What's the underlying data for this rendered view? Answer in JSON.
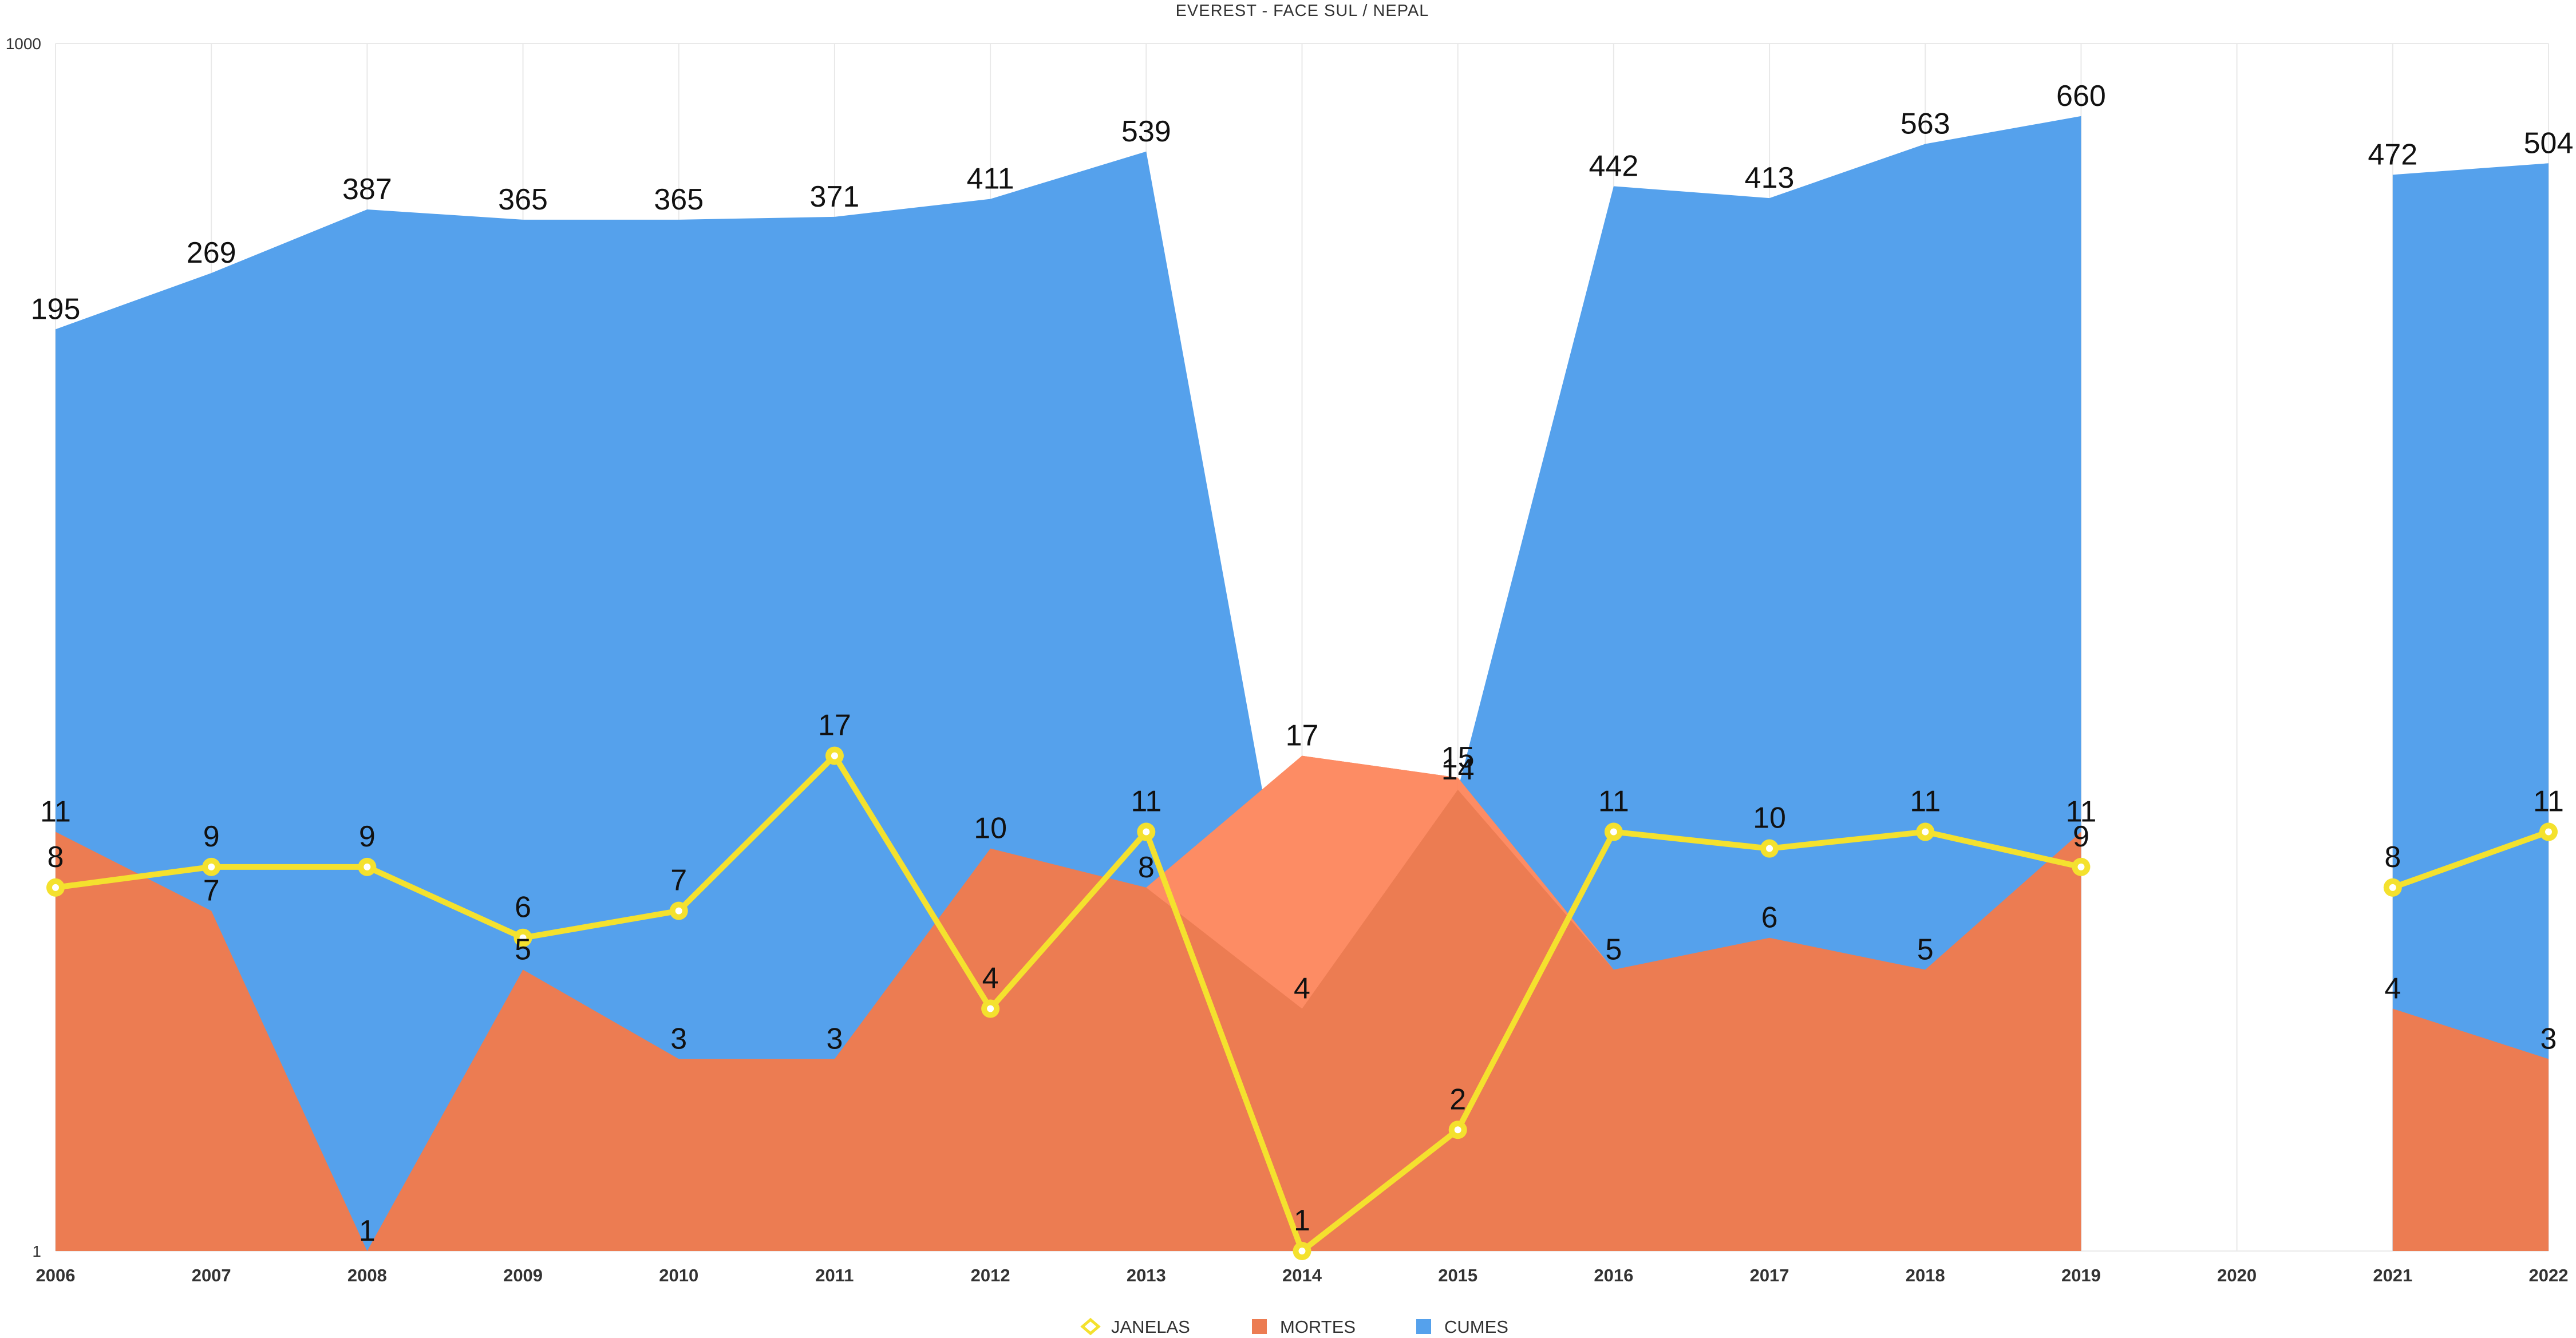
{
  "chart_data": {
    "type": "area",
    "title": "EVEREST - FACE SUL / NEPAL",
    "y_scale": "log",
    "ylim": [
      1,
      1000
    ],
    "yticks": [
      "1",
      "1000"
    ],
    "grid": true,
    "legend_position": "bottom",
    "x": [
      "2006",
      "2007",
      "2008",
      "2009",
      "2010",
      "2011",
      "2012",
      "2013",
      "2014",
      "2015",
      "2016",
      "2017",
      "2018",
      "2019",
      "2020",
      "2021",
      "2022"
    ],
    "series": [
      {
        "name": "JANELAS",
        "kind": "line",
        "color": "#f4e12e",
        "values": [
          8,
          9,
          9,
          6,
          7,
          17,
          4,
          11,
          1,
          2,
          11,
          10,
          11,
          9,
          null,
          8,
          11
        ]
      },
      {
        "name": "MORTES",
        "kind": "area",
        "color": "#ec7c52",
        "highlight_color": "#fd8c64",
        "values": [
          11,
          7,
          1,
          5,
          3,
          3,
          10,
          8,
          17,
          15,
          5,
          6,
          5,
          11,
          null,
          4,
          3
        ]
      },
      {
        "name": "CUMES",
        "kind": "area",
        "color": "#55a1ec",
        "values": [
          195,
          269,
          387,
          365,
          365,
          371,
          411,
          539,
          4,
          14,
          442,
          413,
          563,
          660,
          null,
          472,
          504
        ]
      }
    ]
  }
}
